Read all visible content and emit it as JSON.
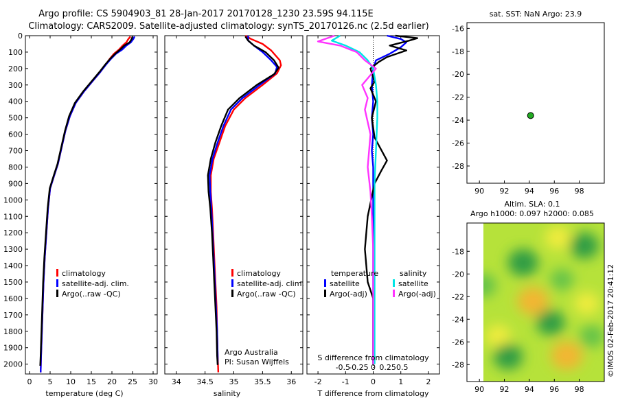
{
  "header": {
    "title_line1": "Argo profile: CS 5904903_81 28-Jan-2017 20170128_1230 23.59S 94.115E",
    "title_line2": "Climatology: CARS2009. Satellite-adjusted climatology: synTS_20170126.nc (2.5d earlier)"
  },
  "colors": {
    "climatology": "#ff0000",
    "satellite": "#0000ff",
    "argo": "#000000",
    "sat_sal": "#00e5e5",
    "argo_sal": "#ff33ff",
    "float_marker": "#22aa22"
  },
  "depth_axis": {
    "ticks": [
      0,
      100,
      200,
      300,
      400,
      500,
      600,
      700,
      800,
      900,
      1000,
      1100,
      1200,
      1300,
      1400,
      1500,
      1600,
      1700,
      1800,
      1900,
      2000
    ],
    "range": [
      0,
      2060
    ]
  },
  "chart_data": [
    {
      "type": "line",
      "name": "temperature",
      "xlabel": "temperature (deg C)",
      "xlim": [
        -1,
        31
      ],
      "xticks": [
        0,
        5,
        10,
        15,
        20,
        25,
        30
      ],
      "legend": [
        "climatology",
        "satellite-adj. clim.",
        "Argo(..raw -QC)"
      ],
      "series": [
        {
          "name": "climatology",
          "color": "#ff0000",
          "points": [
            [
              24.5,
              5
            ],
            [
              24,
              20
            ],
            [
              23.5,
              40
            ],
            [
              22.6,
              60
            ],
            [
              21.7,
              85
            ],
            [
              20.5,
              110
            ],
            [
              19.5,
              140
            ],
            [
              18.5,
              175
            ],
            [
              17.2,
              220
            ],
            [
              15.2,
              280
            ],
            [
              13.2,
              340
            ],
            [
              11.2,
              410
            ],
            [
              9.8,
              490
            ],
            [
              8.7,
              580
            ],
            [
              7.8,
              680
            ],
            [
              6.9,
              780
            ],
            [
              6.0,
              850
            ],
            [
              5.0,
              930
            ],
            [
              4.5,
              1050
            ],
            [
              4.1,
              1200
            ],
            [
              3.7,
              1350
            ],
            [
              3.4,
              1500
            ],
            [
              3.2,
              1650
            ],
            [
              3.0,
              1800
            ],
            [
              2.8,
              1950
            ],
            [
              2.7,
              2050
            ]
          ]
        },
        {
          "name": "satellite",
          "color": "#0000ff",
          "points": [
            [
              25.5,
              5
            ],
            [
              25.2,
              20
            ],
            [
              24.6,
              40
            ],
            [
              23.5,
              60
            ],
            [
              22.5,
              85
            ],
            [
              21,
              110
            ],
            [
              19.8,
              140
            ],
            [
              18.6,
              175
            ],
            [
              17.2,
              220
            ],
            [
              15.2,
              280
            ],
            [
              13.2,
              340
            ],
            [
              11.2,
              410
            ],
            [
              9.8,
              490
            ],
            [
              8.7,
              580
            ],
            [
              7.8,
              680
            ],
            [
              6.9,
              780
            ],
            [
              6.0,
              850
            ],
            [
              5.0,
              930
            ],
            [
              4.5,
              1050
            ],
            [
              4.1,
              1200
            ],
            [
              3.7,
              1350
            ],
            [
              3.4,
              1500
            ],
            [
              3.2,
              1650
            ],
            [
              3.0,
              1800
            ],
            [
              2.8,
              1950
            ],
            [
              2.7,
              2050
            ]
          ]
        },
        {
          "name": "argo",
          "color": "#000000",
          "points": [
            [
              25,
              5
            ],
            [
              24.8,
              20
            ],
            [
              24.3,
              40
            ],
            [
              23,
              60
            ],
            [
              22,
              85
            ],
            [
              20.8,
              110
            ],
            [
              19.6,
              140
            ],
            [
              18.4,
              175
            ],
            [
              17,
              220
            ],
            [
              15,
              280
            ],
            [
              13,
              340
            ],
            [
              11,
              410
            ],
            [
              9.6,
              490
            ],
            [
              8.6,
              580
            ],
            [
              7.7,
              680
            ],
            [
              6.8,
              780
            ],
            [
              5.9,
              850
            ],
            [
              4.9,
              930
            ],
            [
              4.4,
              1050
            ],
            [
              4.0,
              1200
            ],
            [
              3.6,
              1350
            ],
            [
              3.3,
              1500
            ],
            [
              3.1,
              1650
            ],
            [
              2.9,
              1800
            ],
            [
              2.7,
              1950
            ],
            [
              2.6,
              2010
            ]
          ]
        }
      ]
    },
    {
      "type": "line",
      "name": "salinity",
      "xlabel": "salinity",
      "xlim": [
        33.8,
        36.2
      ],
      "xticks": [
        34,
        34.5,
        35,
        35.5,
        36
      ],
      "legend": [
        "climatology",
        "satellite-adj. clim.",
        "Argo(..raw -QC)"
      ],
      "annotation": [
        "Argo Australia",
        "PI: Susan Wijffels"
      ],
      "series": [
        {
          "name": "climatology",
          "color": "#ff0000",
          "points": [
            [
              35.2,
              0
            ],
            [
              35.3,
              20
            ],
            [
              35.5,
              50
            ],
            [
              35.65,
              90
            ],
            [
              35.8,
              150
            ],
            [
              35.82,
              180
            ],
            [
              35.75,
              230
            ],
            [
              35.5,
              300
            ],
            [
              35.2,
              380
            ],
            [
              35.0,
              450
            ],
            [
              34.85,
              550
            ],
            [
              34.75,
              650
            ],
            [
              34.65,
              750
            ],
            [
              34.6,
              850
            ],
            [
              34.6,
              950
            ],
            [
              34.62,
              1050
            ],
            [
              34.64,
              1200
            ],
            [
              34.66,
              1350
            ],
            [
              34.68,
              1500
            ],
            [
              34.7,
              1650
            ],
            [
              34.71,
              1800
            ],
            [
              34.72,
              1950
            ],
            [
              34.73,
              2050
            ]
          ]
        },
        {
          "name": "satellite",
          "color": "#0000ff",
          "points": [
            [
              35.25,
              0
            ],
            [
              35.25,
              30
            ],
            [
              35.35,
              60
            ],
            [
              35.5,
              100
            ],
            [
              35.65,
              150
            ],
            [
              35.75,
              190
            ],
            [
              35.72,
              230
            ],
            [
              35.45,
              300
            ],
            [
              35.15,
              380
            ],
            [
              34.95,
              450
            ],
            [
              34.82,
              550
            ],
            [
              34.72,
              650
            ],
            [
              34.63,
              750
            ],
            [
              34.58,
              850
            ],
            [
              34.59,
              950
            ],
            [
              34.61,
              1050
            ],
            [
              34.63,
              1200
            ],
            [
              34.65,
              1350
            ],
            [
              34.67,
              1500
            ],
            [
              34.69,
              1650
            ],
            [
              34.71,
              1800
            ],
            [
              34.72,
              1950
            ],
            [
              34.72,
              2000
            ]
          ]
        },
        {
          "name": "argo",
          "color": "#000000",
          "points": [
            [
              35.2,
              5
            ],
            [
              35.25,
              30
            ],
            [
              35.35,
              60
            ],
            [
              35.55,
              100
            ],
            [
              35.7,
              150
            ],
            [
              35.78,
              195
            ],
            [
              35.7,
              235
            ],
            [
              35.4,
              300
            ],
            [
              35.1,
              380
            ],
            [
              34.9,
              450
            ],
            [
              34.78,
              550
            ],
            [
              34.68,
              650
            ],
            [
              34.6,
              750
            ],
            [
              34.55,
              850
            ],
            [
              34.56,
              950
            ],
            [
              34.59,
              1050
            ],
            [
              34.62,
              1200
            ],
            [
              34.64,
              1350
            ],
            [
              34.66,
              1500
            ],
            [
              34.68,
              1650
            ],
            [
              34.7,
              1800
            ],
            [
              34.71,
              1950
            ],
            [
              34.72,
              2005
            ]
          ]
        }
      ]
    },
    {
      "type": "line",
      "name": "difference",
      "xlabel": "T difference from climatology",
      "xlabel_top": "S difference from climatology",
      "xlim": [
        -2.4,
        2.4
      ],
      "xticks": [
        -2,
        -1,
        0,
        1,
        2
      ],
      "xticks_top": [
        "-0.5",
        "-0.25",
        "0",
        "0.25",
        "0.5"
      ],
      "legend_temperature": "temperature",
      "legend_salinity": "salinity",
      "legend_labels": [
        "satellite",
        "Argo(-adj)",
        "satellite",
        "Argo(-adj)"
      ],
      "series": [
        {
          "name": "T satellite",
          "color": "#0000ff",
          "points": [
            [
              0.5,
              0
            ],
            [
              1,
              20
            ],
            [
              1.2,
              40
            ],
            [
              1.0,
              70
            ],
            [
              0.6,
              110
            ],
            [
              0.1,
              150
            ],
            [
              0,
              200
            ],
            [
              -0.05,
              300
            ],
            [
              0,
              400
            ],
            [
              -0.05,
              500
            ],
            [
              0,
              600
            ],
            [
              -0.05,
              700
            ],
            [
              0,
              800
            ],
            [
              0,
              1000
            ],
            [
              0,
              1500
            ],
            [
              0,
              2000
            ]
          ]
        },
        {
          "name": "T argo",
          "color": "#000000",
          "points": [
            [
              0.8,
              0
            ],
            [
              1.6,
              15
            ],
            [
              1.3,
              30
            ],
            [
              0.6,
              60
            ],
            [
              1.2,
              90
            ],
            [
              0.5,
              130
            ],
            [
              0.2,
              160
            ],
            [
              -0.1,
              200
            ],
            [
              0.05,
              280
            ],
            [
              -0.1,
              320
            ],
            [
              0.1,
              400
            ],
            [
              -0.05,
              500
            ],
            [
              0.05,
              620
            ],
            [
              0.5,
              760
            ],
            [
              0.3,
              820
            ],
            [
              0.05,
              900
            ],
            [
              -0.2,
              1100
            ],
            [
              -0.3,
              1300
            ],
            [
              -0.2,
              1500
            ],
            [
              0,
              1600
            ],
            [
              0,
              2000
            ]
          ]
        },
        {
          "name": "S satellite",
          "color": "#00e5e5",
          "points": [
            [
              -1.2,
              0
            ],
            [
              -1.5,
              30
            ],
            [
              -1.0,
              60
            ],
            [
              -0.5,
              100
            ],
            [
              -0.2,
              150
            ],
            [
              0,
              200
            ],
            [
              0.1,
              300
            ],
            [
              0.15,
              400
            ],
            [
              0.15,
              500
            ],
            [
              0.1,
              700
            ],
            [
              0.05,
              900
            ],
            [
              0.05,
              1100
            ],
            [
              0.05,
              1400
            ],
            [
              0.05,
              1700
            ],
            [
              0.05,
              2000
            ]
          ]
        },
        {
          "name": "S argo",
          "color": "#ff33ff",
          "points": [
            [
              -1.4,
              0
            ],
            [
              -2.0,
              35
            ],
            [
              -1.2,
              60
            ],
            [
              -0.6,
              100
            ],
            [
              -0.3,
              150
            ],
            [
              0.1,
              200
            ],
            [
              -0.4,
              300
            ],
            [
              -0.2,
              380
            ],
            [
              -0.3,
              450
            ],
            [
              -0.1,
              600
            ],
            [
              -0.2,
              800
            ],
            [
              -0.1,
              950
            ],
            [
              -0.05,
              1100
            ],
            [
              0,
              1300
            ],
            [
              0,
              1600
            ],
            [
              0,
              2000
            ]
          ]
        }
      ]
    },
    {
      "type": "scatter",
      "name": "sst_map",
      "title": "sat. SST: NaN Argo: 23.9",
      "xlim": [
        89,
        100
      ],
      "ylim": [
        -29.5,
        -15.5
      ],
      "xticks": [
        90,
        92,
        94,
        96,
        98
      ],
      "yticks": [
        -16,
        -18,
        -20,
        -22,
        -24,
        -26,
        -28
      ],
      "points": [
        {
          "x": 94.1,
          "y": -23.6
        }
      ]
    },
    {
      "type": "heatmap",
      "name": "sla_map",
      "title_line1": "Altim. SLA: 0.1",
      "title_line2": "Argo h1000: 0.097 h2000: 0.085",
      "xlim": [
        89,
        100
      ],
      "ylim": [
        -29.5,
        -15.5
      ],
      "xticks": [
        90,
        92,
        94,
        96,
        98
      ],
      "yticks": [
        -18,
        -20,
        -22,
        -24,
        -26,
        -28
      ],
      "blobs": [
        {
          "x": 94.3,
          "y": -22.4,
          "v": 1.0
        },
        {
          "x": 97.0,
          "y": -27.2,
          "v": 1.0
        },
        {
          "x": 91.5,
          "y": -25.5,
          "v": 0.5
        },
        {
          "x": 96.3,
          "y": -16.8,
          "v": 0.55
        },
        {
          "x": 98.6,
          "y": -22.6,
          "v": 0.45
        },
        {
          "x": 93.5,
          "y": -19.0,
          "v": -0.9
        },
        {
          "x": 92.3,
          "y": -27.3,
          "v": -0.8
        },
        {
          "x": 95.7,
          "y": -24.3,
          "v": -0.75
        },
        {
          "x": 98.4,
          "y": -17.5,
          "v": -0.8
        },
        {
          "x": 90.3,
          "y": -21.0,
          "v": -0.55
        },
        {
          "x": 96.6,
          "y": -20.5,
          "v": -0.35
        },
        {
          "x": 99.0,
          "y": -25.5,
          "v": -0.45
        }
      ]
    }
  ],
  "footer": {
    "timestamp": "©IMOS 02-Feb-2017 20:41:12"
  }
}
